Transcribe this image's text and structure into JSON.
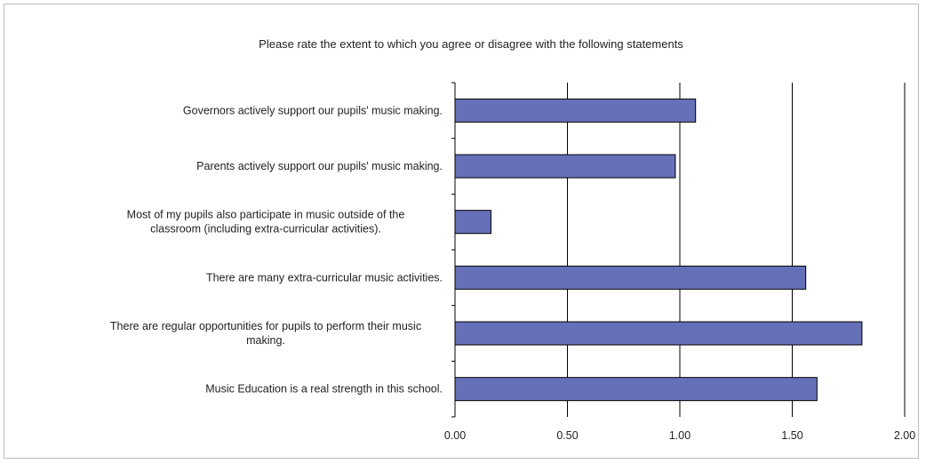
{
  "chart_data": {
    "type": "bar",
    "orientation": "horizontal",
    "title": "Please rate the extent to which you agree or disagree with the following statements",
    "xlabel": "",
    "ylabel": "",
    "xlim": [
      0,
      2
    ],
    "x_ticks": [
      "0.00",
      "0.50",
      "1.00",
      "1.50",
      "2.00"
    ],
    "grid": "vertical",
    "bar_color": "#6670b8",
    "categories": [
      [
        "Governors actively support our pupils' music making."
      ],
      [
        "Parents actively support our pupils' music making."
      ],
      [
        "Most of my pupils also participate in music outside of the",
        "classroom (including extra-curricular activities)."
      ],
      [
        "There are many extra-curricular music activities."
      ],
      [
        "There are regular opportunities for pupils to perform their music",
        "making."
      ],
      [
        "Music Education is a real strength in this school."
      ]
    ],
    "values": [
      1.07,
      0.98,
      0.16,
      1.56,
      1.81,
      1.61
    ]
  }
}
